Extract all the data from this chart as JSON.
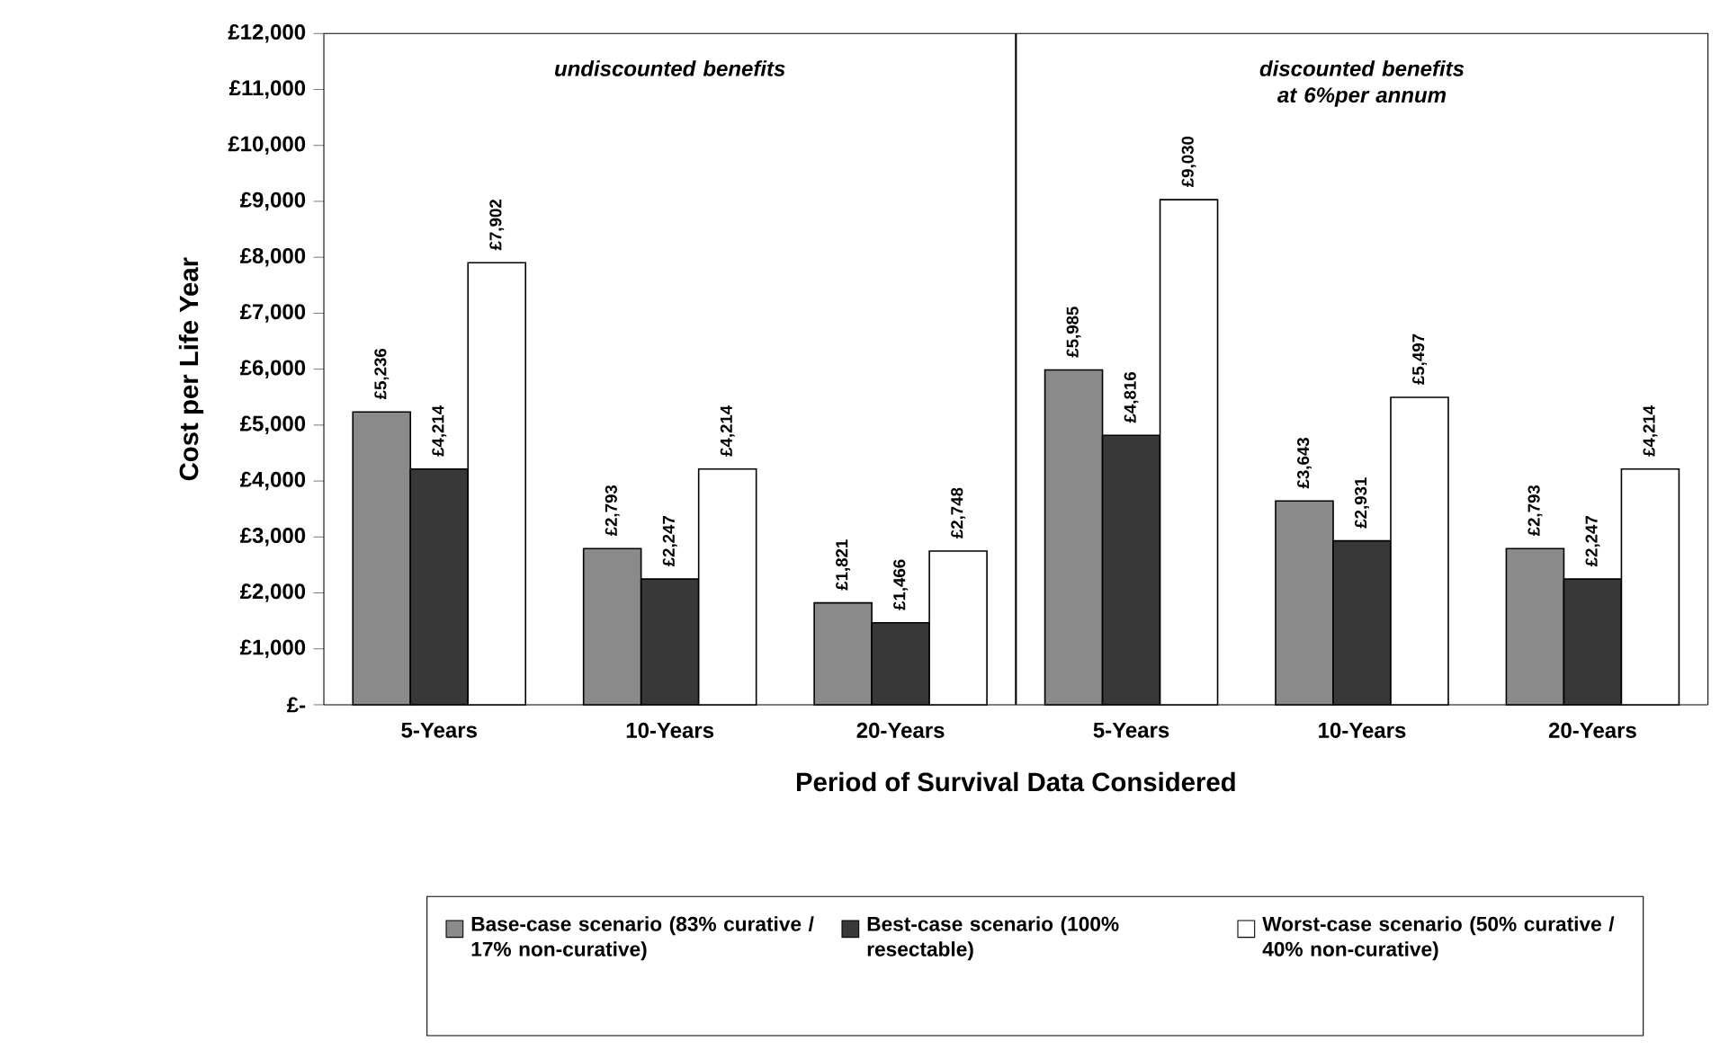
{
  "chart_data": {
    "type": "bar",
    "xlabel": "Period of Survival Data Considered",
    "ylabel": "Cost per Life Year",
    "categories": [
      "5-Years",
      "10-Years",
      "20-Years",
      "5-Years",
      "10-Years",
      "20-Years"
    ],
    "series": [
      {
        "name": "Base-case scenario (83% curative / 17% non-curative)",
        "color": "#8a8a8a",
        "values": [
          5236,
          2793,
          1821,
          5985,
          3643,
          2793
        ],
        "value_labels": [
          "£5,236",
          "£2,793",
          "£1,821",
          "£5,985",
          "£3,643",
          "£2,793"
        ]
      },
      {
        "name": "Best-case scenario (100% resectable)",
        "color": "#383838",
        "values": [
          4214,
          2247,
          1466,
          4816,
          2931,
          2247
        ],
        "value_labels": [
          "£4,214",
          "£2,247",
          "£1,466",
          "£4,816",
          "£2,931",
          "£2,247"
        ]
      },
      {
        "name": "Worst-case scenario (50% curative / 40% non-curative)",
        "color": "#ffffff",
        "values": [
          7902,
          4214,
          2748,
          9030,
          5497,
          4214
        ],
        "value_labels": [
          "£7,902",
          "£4,214",
          "£2,748",
          "£9,030",
          "£5,497",
          "£4,214"
        ]
      }
    ],
    "ylim": [
      0,
      12000
    ],
    "yticks": [
      {
        "value": 0,
        "label": "£-"
      },
      {
        "value": 1000,
        "label": "£1,000"
      },
      {
        "value": 2000,
        "label": "£2,000"
      },
      {
        "value": 3000,
        "label": "£3,000"
      },
      {
        "value": 4000,
        "label": "£4,000"
      },
      {
        "value": 5000,
        "label": "£5,000"
      },
      {
        "value": 6000,
        "label": "£6,000"
      },
      {
        "value": 7000,
        "label": "£7,000"
      },
      {
        "value": 8000,
        "label": "£8,000"
      },
      {
        "value": 9000,
        "label": "£9,000"
      },
      {
        "value": 10000,
        "label": "£10,000"
      },
      {
        "value": 11000,
        "label": "£11,000"
      },
      {
        "value": 12000,
        "label": "£12,000"
      }
    ],
    "annotations": [
      "undiscounted benefits",
      "discounted benefits at 6%per annum"
    ],
    "grid": false,
    "legend": "bottom"
  }
}
